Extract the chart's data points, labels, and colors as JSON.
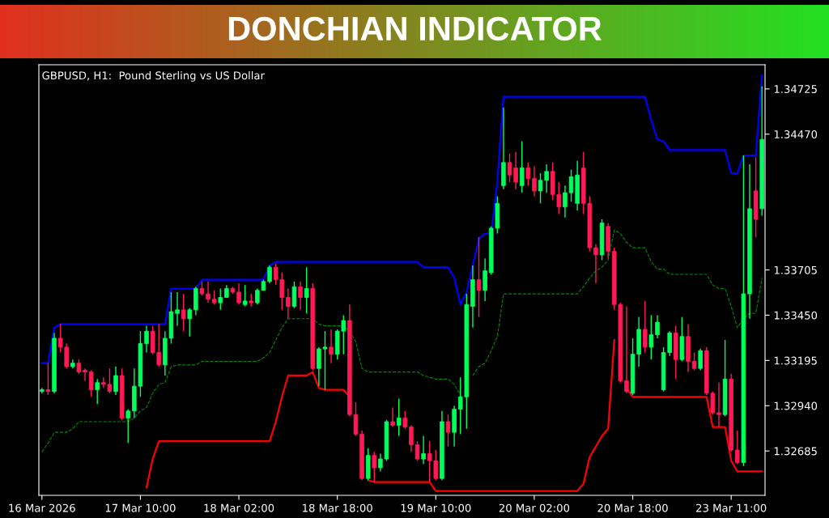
{
  "chart_data": {
    "type": "candlestick",
    "title": "DONCHIAN INDICATOR",
    "subtitle": "GBPUSD, H1:  Pound Sterling vs US Dollar",
    "categories": [
      "16 Mar 2026",
      null,
      null,
      null,
      null,
      null,
      null,
      null,
      null,
      null,
      null,
      null,
      null,
      null,
      null,
      null,
      "17 Mar 10:00",
      null,
      null,
      null,
      null,
      null,
      null,
      null,
      null,
      null,
      null,
      null,
      null,
      null,
      null,
      null,
      "18 Mar 02:00",
      null,
      null,
      null,
      null,
      null,
      null,
      null,
      null,
      null,
      null,
      null,
      null,
      null,
      null,
      null,
      "18 Mar 18:00",
      null,
      null,
      null,
      null,
      null,
      null,
      null,
      null,
      null,
      null,
      null,
      null,
      null,
      null,
      null,
      "19 Mar 10:00",
      null,
      null,
      null,
      null,
      null,
      null,
      null,
      null,
      null,
      null,
      null,
      null,
      null,
      null,
      null,
      "20 Mar 02:00",
      null,
      null,
      null,
      null,
      null,
      null,
      null,
      null,
      null,
      null,
      null,
      null,
      null,
      null,
      null,
      "20 Mar 18:00",
      null,
      null,
      null,
      null,
      null,
      null,
      null,
      null,
      null,
      null,
      null,
      null,
      null,
      null,
      null,
      "23 Mar 11:00",
      null,
      null,
      null,
      null,
      null
    ],
    "ohlc": [
      [
        1.3302,
        1.3304,
        1.3301,
        1.3303
      ],
      [
        1.3303,
        1.3318,
        1.33,
        1.3302
      ],
      [
        1.3302,
        1.3335,
        1.3301,
        1.3332
      ],
      [
        1.3332,
        1.334,
        1.3324,
        1.3327
      ],
      [
        1.3327,
        1.3329,
        1.3315,
        1.3316
      ],
      [
        1.3316,
        1.332,
        1.3315,
        1.3318
      ],
      [
        1.3318,
        1.332,
        1.3312,
        1.3313
      ],
      [
        1.3314,
        1.3315,
        1.3308,
        1.3313
      ],
      [
        1.3313,
        1.3314,
        1.3299,
        1.3303
      ],
      [
        1.3303,
        1.3309,
        1.3295,
        1.3307
      ],
      [
        1.3307,
        1.331,
        1.3304,
        1.3306
      ],
      [
        1.3306,
        1.3315,
        1.3301,
        1.3302
      ],
      [
        1.3302,
        1.3316,
        1.33,
        1.3311
      ],
      [
        1.3311,
        1.3315,
        1.3286,
        1.3287
      ],
      [
        1.3287,
        1.3292,
        1.3273,
        1.3291
      ],
      [
        1.3291,
        1.3315,
        1.3287,
        1.3305
      ],
      [
        1.3305,
        1.3336,
        1.3299,
        1.3329
      ],
      [
        1.3329,
        1.3339,
        1.3324,
        1.3336
      ],
      [
        1.3336,
        1.3339,
        1.3323,
        1.3324
      ],
      [
        1.3324,
        1.334,
        1.3316,
        1.3317
      ],
      [
        1.3317,
        1.3336,
        1.3311,
        1.3332
      ],
      [
        1.3332,
        1.3358,
        1.3329,
        1.3347
      ],
      [
        1.3346,
        1.3358,
        1.3339,
        1.3348
      ],
      [
        1.3348,
        1.3357,
        1.3336,
        1.3343
      ],
      [
        1.3343,
        1.3349,
        1.3333,
        1.3348
      ],
      [
        1.3348,
        1.3361,
        1.3345,
        1.336
      ],
      [
        1.336,
        1.3364,
        1.3356,
        1.3357
      ],
      [
        1.3357,
        1.3364,
        1.3352,
        1.3354
      ],
      [
        1.3354,
        1.3359,
        1.3351,
        1.3352
      ],
      [
        1.3352,
        1.336,
        1.3348,
        1.3355
      ],
      [
        1.3355,
        1.3362,
        1.3355,
        1.336
      ],
      [
        1.336,
        1.3361,
        1.3357,
        1.3358
      ],
      [
        1.3358,
        1.3363,
        1.3351,
        1.3352
      ],
      [
        1.3351,
        1.3362,
        1.335,
        1.3353
      ],
      [
        1.3353,
        1.3357,
        1.335,
        1.3352
      ],
      [
        1.3352,
        1.336,
        1.3351,
        1.3359
      ],
      [
        1.3359,
        1.3365,
        1.3359,
        1.3364
      ],
      [
        1.3364,
        1.3373,
        1.3363,
        1.3372
      ],
      [
        1.3372,
        1.3374,
        1.3362,
        1.3365
      ],
      [
        1.3365,
        1.3369,
        1.3348,
        1.3355
      ],
      [
        1.3355,
        1.336,
        1.3343,
        1.335
      ],
      [
        1.335,
        1.3364,
        1.3349,
        1.3361
      ],
      [
        1.3361,
        1.3364,
        1.3348,
        1.3355
      ],
      [
        1.3355,
        1.3372,
        1.3346,
        1.336
      ],
      [
        1.336,
        1.3363,
        1.3314,
        1.3315
      ],
      [
        1.3315,
        1.3327,
        1.3305,
        1.3326
      ],
      [
        1.3326,
        1.3336,
        1.3303,
        1.3327
      ],
      [
        1.3327,
        1.3337,
        1.3318,
        1.3323
      ],
      [
        1.3323,
        1.3337,
        1.332,
        1.3336
      ],
      [
        1.3336,
        1.3345,
        1.3323,
        1.3342
      ],
      [
        1.3342,
        1.3351,
        1.3288,
        1.3289
      ],
      [
        1.3289,
        1.3296,
        1.3277,
        1.3278
      ],
      [
        1.3278,
        1.328,
        1.3252,
        1.3253
      ],
      [
        1.3253,
        1.327,
        1.3252,
        1.3266
      ],
      [
        1.3266,
        1.3268,
        1.3251,
        1.3259
      ],
      [
        1.3259,
        1.3267,
        1.3257,
        1.3264
      ],
      [
        1.3264,
        1.3286,
        1.3263,
        1.3285
      ],
      [
        1.3285,
        1.3293,
        1.3282,
        1.3283
      ],
      [
        1.3283,
        1.3298,
        1.3277,
        1.3287
      ],
      [
        1.3287,
        1.3291,
        1.3281,
        1.3282
      ],
      [
        1.3282,
        1.3283,
        1.3268,
        1.3272
      ],
      [
        1.3272,
        1.3274,
        1.3263,
        1.3264
      ],
      [
        1.3264,
        1.3277,
        1.3261,
        1.3267
      ],
      [
        1.3267,
        1.3274,
        1.3251,
        1.3263
      ],
      [
        1.3263,
        1.3269,
        1.3252,
        1.3253
      ],
      [
        1.3253,
        1.3291,
        1.3252,
        1.3285
      ],
      [
        1.3285,
        1.3289,
        1.3271,
        1.3279
      ],
      [
        1.3279,
        1.3294,
        1.3271,
        1.3292
      ],
      [
        1.3292,
        1.331,
        1.3278,
        1.3299
      ],
      [
        1.3299,
        1.3357,
        1.3281,
        1.3351
      ],
      [
        1.335,
        1.3373,
        1.3338,
        1.3365
      ],
      [
        1.3365,
        1.3389,
        1.3344,
        1.3359
      ],
      [
        1.3359,
        1.3377,
        1.3353,
        1.337
      ],
      [
        1.3369,
        1.3395,
        1.3368,
        1.3394
      ],
      [
        1.3394,
        1.3412,
        1.3391,
        1.3408
      ],
      [
        1.3418,
        1.3462,
        1.3416,
        1.3431
      ],
      [
        1.3431,
        1.3436,
        1.342,
        1.3424
      ],
      [
        1.3428,
        1.3437,
        1.3416,
        1.342
      ],
      [
        1.3418,
        1.3443,
        1.3414,
        1.3428
      ],
      [
        1.3428,
        1.3431,
        1.3418,
        1.3422
      ],
      [
        1.3422,
        1.3429,
        1.3412,
        1.3415
      ],
      [
        1.3415,
        1.3425,
        1.3408,
        1.3421
      ],
      [
        1.3421,
        1.343,
        1.3414,
        1.3426
      ],
      [
        1.3426,
        1.3431,
        1.341,
        1.3413
      ],
      [
        1.3413,
        1.342,
        1.3402,
        1.3406
      ],
      [
        1.3406,
        1.3418,
        1.34,
        1.3414
      ],
      [
        1.3414,
        1.3427,
        1.3409,
        1.3423
      ],
      [
        1.3408,
        1.3432,
        1.3404,
        1.3424
      ],
      [
        1.3428,
        1.3437,
        1.3402,
        1.3408
      ],
      [
        1.3408,
        1.3412,
        1.3381,
        1.3383
      ],
      [
        1.3383,
        1.3385,
        1.3363,
        1.3379
      ],
      [
        1.3379,
        1.3399,
        1.3376,
        1.3397
      ],
      [
        1.3395,
        1.3397,
        1.3377,
        1.3381
      ],
      [
        1.3381,
        1.3383,
        1.3348,
        1.3351
      ],
      [
        1.3351,
        1.3352,
        1.3307,
        1.3308
      ],
      [
        1.3308,
        1.335,
        1.3301,
        1.3302
      ],
      [
        1.3301,
        1.3332,
        1.33,
        1.3323
      ],
      [
        1.3323,
        1.3344,
        1.3316,
        1.3337
      ],
      [
        1.3337,
        1.3353,
        1.3324,
        1.3327
      ],
      [
        1.3327,
        1.3345,
        1.332,
        1.3334
      ],
      [
        1.3334,
        1.3345,
        1.3332,
        1.3341
      ],
      [
        1.3303,
        1.3327,
        1.3302,
        1.3324
      ],
      [
        1.3324,
        1.3336,
        1.3322,
        1.3335
      ],
      [
        1.3335,
        1.3339,
        1.3309,
        1.332
      ],
      [
        1.332,
        1.3344,
        1.3319,
        1.3333
      ],
      [
        1.3333,
        1.334,
        1.3313,
        1.3319
      ],
      [
        1.3319,
        1.3324,
        1.3314,
        1.3315
      ],
      [
        1.3315,
        1.3326,
        1.3314,
        1.3325
      ],
      [
        1.3325,
        1.3327,
        1.33,
        1.3301
      ],
      [
        1.3301,
        1.3302,
        1.3289,
        1.329
      ],
      [
        1.329,
        1.3307,
        1.3282,
        1.3289
      ],
      [
        1.3289,
        1.3331,
        1.3288,
        1.3309
      ],
      [
        1.3309,
        1.3312,
        1.3268,
        1.3269
      ],
      [
        1.3269,
        1.328,
        1.3261,
        1.3262
      ],
      [
        1.3262,
        1.3435,
        1.326,
        1.3357
      ],
      [
        1.3357,
        1.343,
        1.3343,
        1.3405
      ],
      [
        1.3415,
        1.3434,
        1.3389,
        1.3399
      ],
      [
        1.3405,
        1.3474,
        1.3401,
        1.3444
      ]
    ],
    "colors": [
      "#00ff5a",
      "#ff1a55",
      "#00ff5a",
      "#ff1a55",
      "#ff1a55",
      "#00ff5a",
      "#ff1a55",
      "#ff1a55",
      "#ff1a55",
      "#00ff5a",
      "#ff1a55",
      "#ff1a55",
      "#00ff5a",
      "#ff1a55",
      "#00ff5a",
      "#00ff5a",
      "#00ff5a",
      "#00ff5a",
      "#ff1a55",
      "#ff1a55",
      "#00ff5a",
      "#00ff5a",
      "#00ff5a",
      "#ff1a55",
      "#00ff5a",
      "#00ff5a",
      "#ff1a55",
      "#ff1a55",
      "#ff1a55",
      "#00ff5a",
      "#00ff5a",
      "#ff1a55",
      "#ff1a55",
      "#00ff5a",
      "#ff1a55",
      "#00ff5a",
      "#00ff5a",
      "#00ff5a",
      "#ff1a55",
      "#ff1a55",
      "#ff1a55",
      "#00ff5a",
      "#ff1a55",
      "#00ff5a",
      "#ff1a55",
      "#00ff5a",
      "#00ff5a",
      "#ff1a55",
      "#00ff5a",
      "#00ff5a",
      "#ff1a55",
      "#ff1a55",
      "#ff1a55",
      "#00ff5a",
      "#ff1a55",
      "#00ff5a",
      "#00ff5a",
      "#ff1a55",
      "#00ff5a",
      "#ff1a55",
      "#ff1a55",
      "#ff1a55",
      "#00ff5a",
      "#ff1a55",
      "#ff1a55",
      "#00ff5a",
      "#ff1a55",
      "#00ff5a",
      "#00ff5a",
      "#00ff5a",
      "#00ff5a",
      "#ff1a55",
      "#00ff5a",
      "#00ff5a",
      "#00ff5a",
      "#00ff5a",
      "#ff1a55",
      "#ff1a55",
      "#00ff5a",
      "#ff1a55",
      "#ff1a55",
      "#00ff5a",
      "#00ff5a",
      "#ff1a55",
      "#ff1a55",
      "#00ff5a",
      "#00ff5a",
      "#00ff5a",
      "#ff1a55",
      "#ff1a55",
      "#ff1a55",
      "#00ff5a",
      "#ff1a55",
      "#ff1a55",
      "#ff1a55",
      "#ff1a55",
      "#00ff5a",
      "#00ff5a",
      "#ff1a55",
      "#00ff5a",
      "#00ff5a",
      "#00ff5a",
      "#00ff5a",
      "#ff1a55",
      "#00ff5a",
      "#ff1a55",
      "#ff1a55",
      "#00ff5a",
      "#ff1a55",
      "#ff1a55",
      "#ff1a55",
      "#00ff5a",
      "#ff1a55",
      "#ff1a55",
      "#00ff5a",
      "#00ff5a",
      "#ff1a55",
      "#00ff5a"
    ],
    "series": [
      {
        "type": "line",
        "color": "#0000ff",
        "line_style": "solid",
        "values": [
          1.3318,
          1.3318,
          1.3338,
          1.334,
          1.334,
          1.334,
          1.334,
          1.334,
          1.334,
          1.334,
          1.334,
          1.334,
          1.334,
          1.334,
          1.334,
          1.334,
          1.334,
          1.334,
          1.334,
          1.334,
          1.334,
          1.336,
          1.336,
          1.336,
          1.336,
          1.336,
          1.3365,
          1.3365,
          1.3365,
          1.3365,
          1.3365,
          1.3365,
          1.3365,
          1.3365,
          1.3365,
          1.3365,
          1.3365,
          1.3373,
          1.3375,
          1.3375,
          1.3375,
          1.3375,
          1.3375,
          1.3375,
          1.3375,
          1.3375,
          1.3375,
          1.3375,
          1.3375,
          1.3375,
          1.3375,
          1.3375,
          1.3375,
          1.3375,
          1.3375,
          1.3375,
          1.3375,
          1.3375,
          1.3375,
          1.3375,
          1.3375,
          1.3375,
          1.3372,
          1.3372,
          1.3372,
          1.3372,
          1.3372,
          1.3366,
          1.3351,
          1.3358,
          1.3373,
          1.3388,
          1.3391,
          1.3391,
          1.342,
          1.3468,
          1.3468,
          1.3468,
          1.3468,
          1.3468,
          1.3468,
          1.3468,
          1.3468,
          1.3468,
          1.3468,
          1.3468,
          1.3468,
          1.3468,
          1.3468,
          1.3468,
          1.3468,
          1.3468,
          1.3468,
          1.3468,
          1.3468,
          1.3468,
          1.3468,
          1.3468,
          1.3468,
          1.3455,
          1.3444,
          1.3443,
          1.3438,
          1.3438,
          1.3438,
          1.3438,
          1.3438,
          1.3438,
          1.3438,
          1.3438,
          1.3438,
          1.3438,
          1.3425,
          1.3425,
          1.3435,
          1.3435,
          1.3435,
          1.348
        ]
      },
      {
        "type": "line",
        "color": "#ff0000",
        "line_style": "solid",
        "values": [
          null,
          null,
          null,
          null,
          null,
          null,
          null,
          null,
          null,
          null,
          null,
          null,
          null,
          null,
          null,
          null,
          null,
          1.3248,
          1.3264,
          1.3274,
          1.3274,
          1.3274,
          1.3274,
          1.3274,
          1.3274,
          1.3274,
          1.3274,
          1.3274,
          1.3274,
          1.3274,
          1.3274,
          1.3274,
          1.3274,
          1.3274,
          1.3274,
          1.3274,
          1.3274,
          1.3274,
          1.3285,
          1.3299,
          1.3311,
          1.3311,
          1.3311,
          1.3311,
          1.3313,
          1.3304,
          1.3303,
          1.3303,
          1.3303,
          1.3303,
          1.3299,
          null,
          null,
          1.3252,
          1.3251,
          1.3251,
          1.3251,
          1.3251,
          1.3251,
          1.3251,
          1.3251,
          1.3251,
          1.3251,
          1.3251,
          1.3246,
          1.3246,
          1.3246,
          1.3246,
          1.3246,
          1.3246,
          1.3246,
          1.3246,
          1.3246,
          1.3246,
          1.3246,
          1.3246,
          1.3246,
          1.3246,
          1.3246,
          1.3246,
          1.3246,
          1.3246,
          1.3246,
          1.3246,
          1.3246,
          1.3246,
          1.3246,
          1.3246,
          1.325,
          1.3265,
          1.3271,
          1.3277,
          1.3281,
          1.3331,
          null,
          1.3304,
          1.3299,
          1.3299,
          1.3299,
          1.3299,
          1.3299,
          1.3299,
          1.3299,
          1.3299,
          1.3299,
          1.3299,
          1.3299,
          1.3299,
          1.3299,
          1.3282,
          1.3282,
          1.3282,
          1.3263,
          1.3257,
          1.3257,
          1.3257,
          1.3257,
          1.3257
        ]
      },
      {
        "type": "line",
        "color": "#008a00",
        "line_style": "dashed",
        "values": [
          1.3268,
          1.3273,
          1.3279,
          1.3279,
          1.3279,
          1.3281,
          1.3285,
          1.3285,
          1.3285,
          1.3285,
          1.3285,
          1.3285,
          1.3285,
          1.3285,
          1.3285,
          1.3287,
          1.3291,
          1.3293,
          1.3301,
          1.3306,
          1.3307,
          1.3316,
          1.3317,
          1.3317,
          1.3317,
          1.3317,
          1.3319,
          1.3319,
          1.3319,
          1.3319,
          1.3319,
          1.3319,
          1.3319,
          1.3319,
          1.3319,
          1.3319,
          1.3321,
          1.3324,
          1.3331,
          1.3338,
          1.3343,
          1.3343,
          1.3343,
          1.3343,
          1.3343,
          1.334,
          1.3339,
          1.3339,
          1.3339,
          1.3339,
          1.3336,
          1.333,
          1.3315,
          1.3313,
          1.3313,
          1.3313,
          1.3313,
          1.3313,
          1.3313,
          1.3313,
          1.3313,
          1.3313,
          1.3311,
          1.331,
          1.3309,
          1.3309,
          1.3309,
          1.3306,
          1.33,
          null,
          1.3311,
          1.3316,
          1.3318,
          1.3325,
          1.3333,
          1.3357,
          1.3357,
          1.3357,
          1.3357,
          1.3357,
          1.3357,
          1.3357,
          1.3357,
          1.3357,
          1.3357,
          1.3357,
          1.3357,
          1.3357,
          1.3361,
          1.3366,
          1.337,
          1.3372,
          1.3376,
          1.3393,
          1.3391,
          1.3386,
          1.3383,
          1.3383,
          1.3383,
          1.3375,
          1.3371,
          1.3371,
          1.3368,
          1.3368,
          1.3368,
          1.3368,
          1.3368,
          1.3368,
          1.3368,
          1.3362,
          1.336,
          1.336,
          1.335,
          1.3338,
          1.3343,
          1.3346,
          1.3346,
          1.3366
        ]
      }
    ],
    "ylim": [
      1.32435,
      1.34861
    ],
    "yticks": [
      1.32685,
      {
        "value": 1.3294,
        "label": "1.32940"
      },
      1.33195,
      {
        "value": 1.3345,
        "label": "1.33450"
      },
      1.33705,
      {
        "value": 1.3447,
        "label": "1.34470"
      },
      1.34725
    ]
  }
}
